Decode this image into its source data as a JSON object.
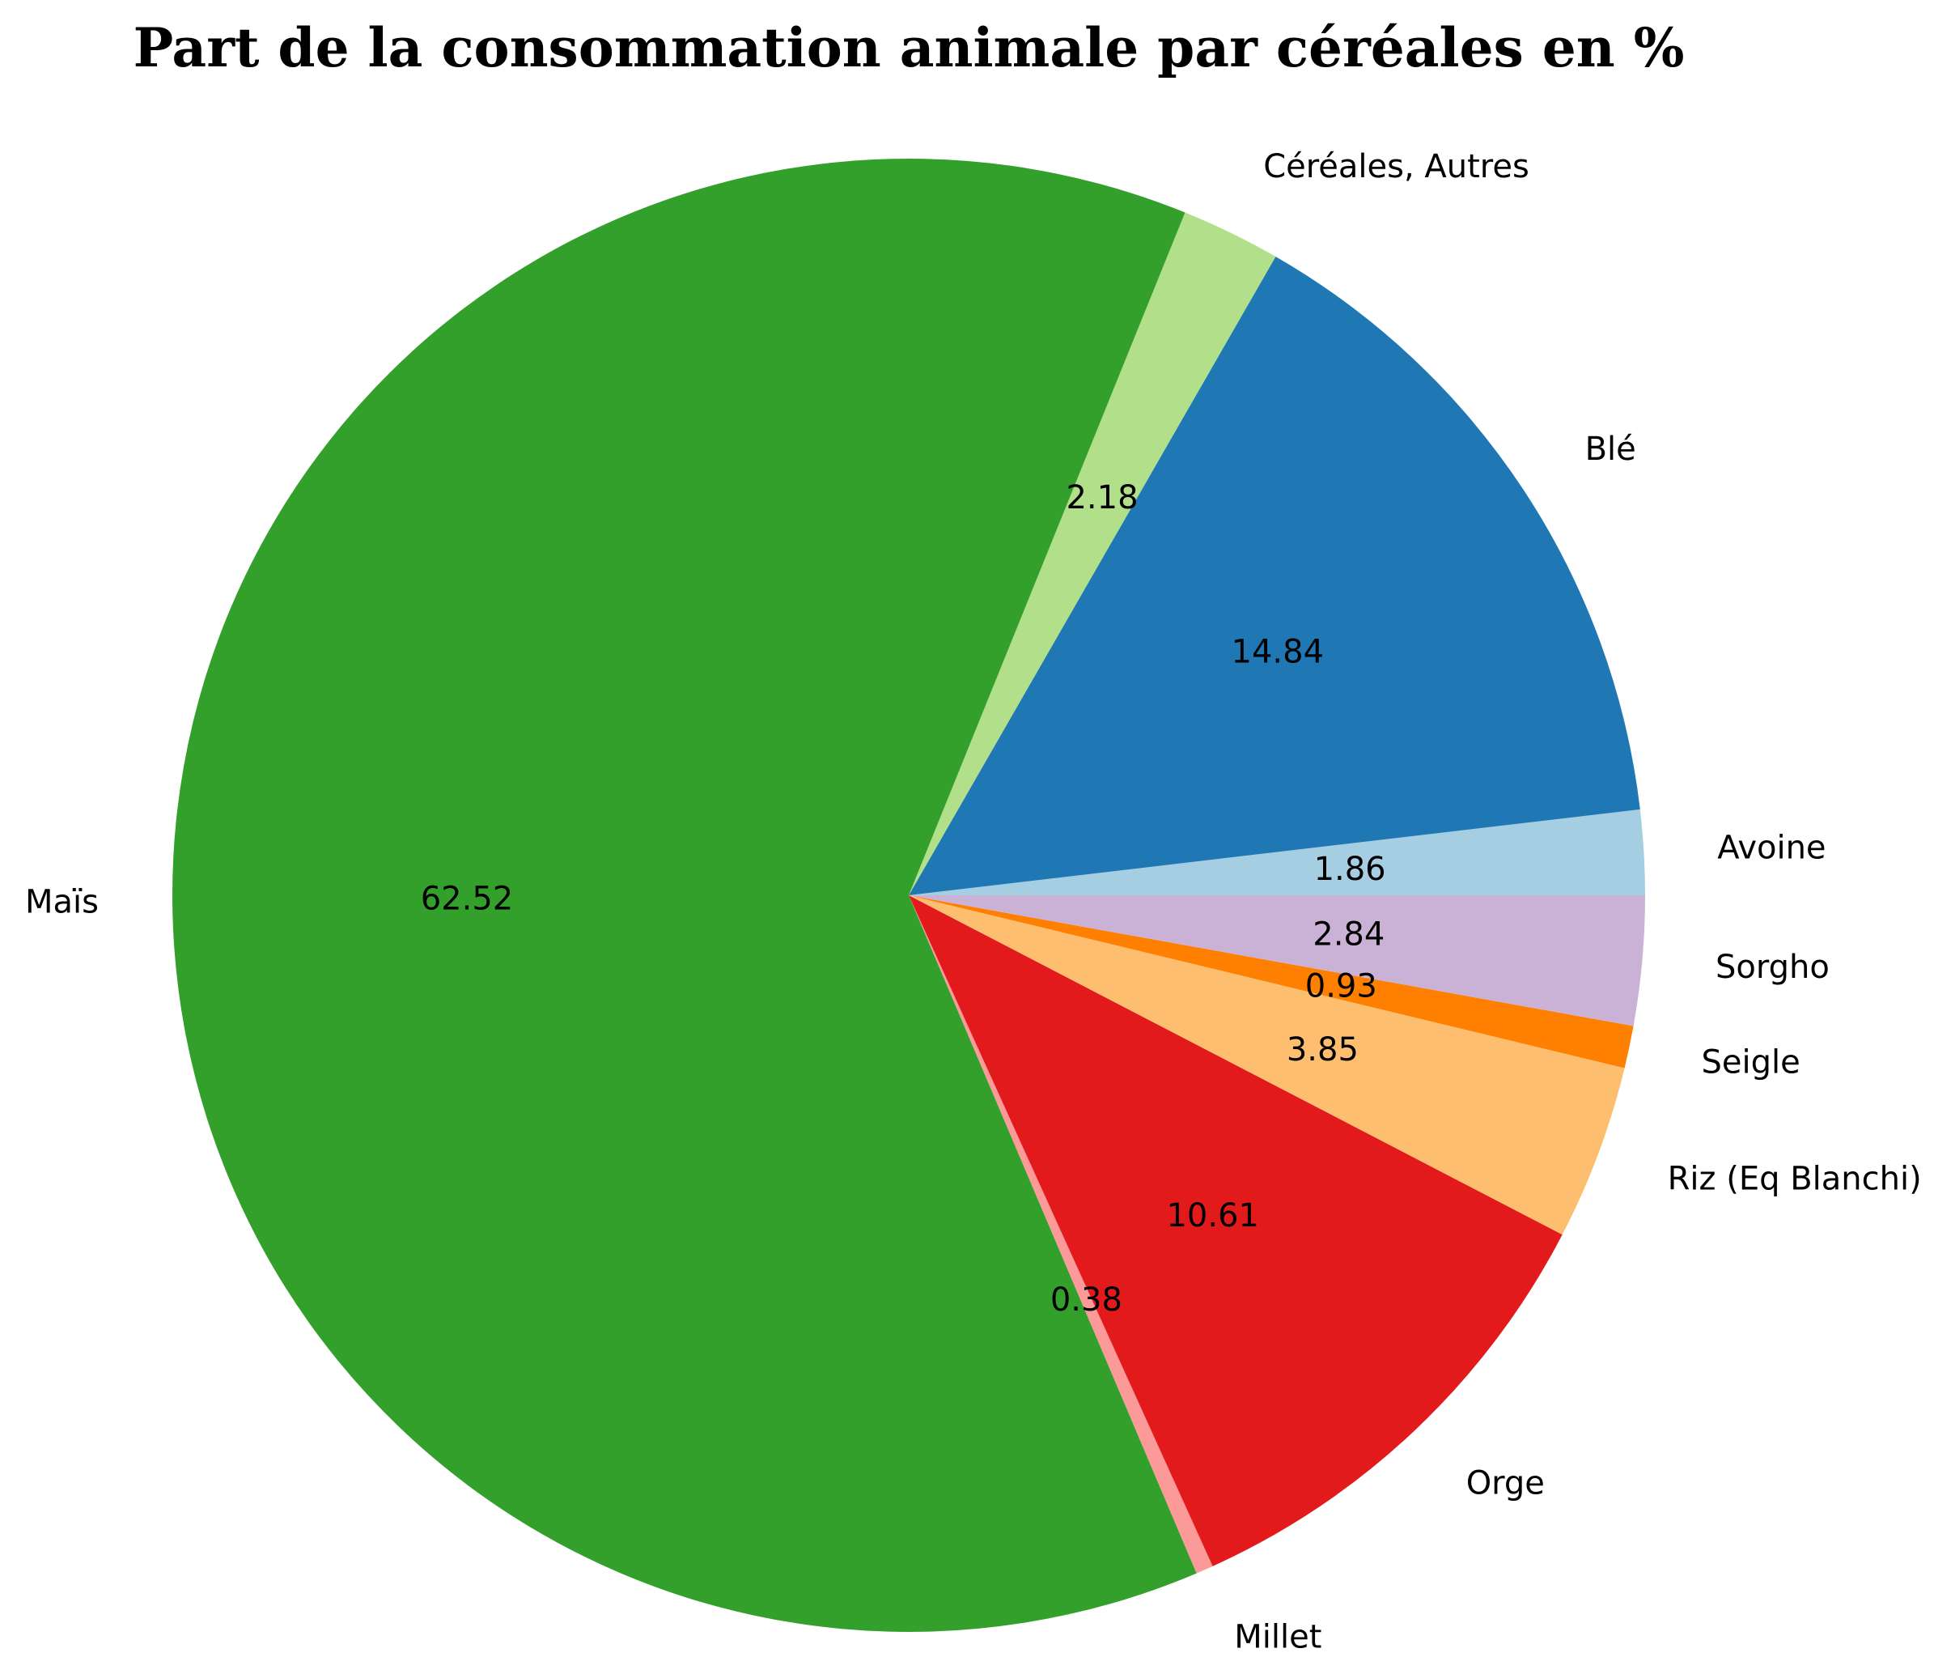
{
  "chart_data": {
    "type": "pie",
    "title": "Part de la consommation animale par céréales en %",
    "categories": [
      "Avoine",
      "Blé",
      "Céréales, Autres",
      "Maïs",
      "Millet",
      "Orge",
      "Riz (Eq Blanchi)",
      "Seigle",
      "Sorgho"
    ],
    "values": [
      1.86,
      14.84,
      2.18,
      62.52,
      0.38,
      10.61,
      3.85,
      0.93,
      2.84
    ],
    "value_labels": [
      "1.86",
      "14.84",
      "2.18",
      "62.52",
      "0.38",
      "10.61",
      "3.85",
      "0.93",
      "2.84"
    ],
    "colors": [
      "#a6cee3",
      "#1f78b4",
      "#b2df8a",
      "#33a02c",
      "#fb9a99",
      "#e31a1c",
      "#fdbf6f",
      "#ff7f00",
      "#cab2d6"
    ],
    "start_angle_deg": 0,
    "direction": "counterclockwise",
    "legend": "none"
  }
}
